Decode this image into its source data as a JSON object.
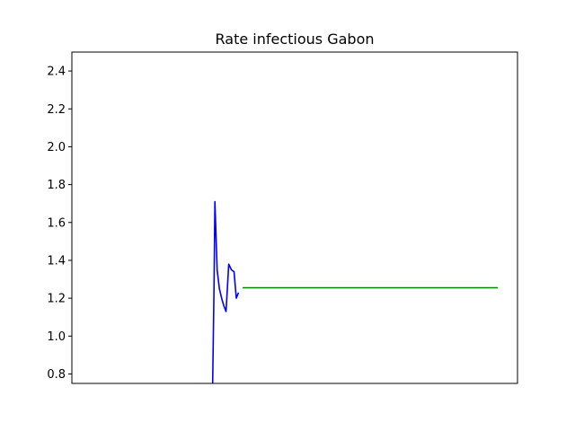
{
  "chart_data": {
    "type": "line",
    "title": "Rate infectious Gabon",
    "xlabel": "",
    "ylabel": "",
    "x_ticks_shown": false,
    "ylim": [
      0.75,
      2.5
    ],
    "xlim": [
      0,
      100
    ],
    "yticks": [
      "0.8",
      "1.0",
      "1.2",
      "1.4",
      "1.6",
      "1.8",
      "2.0",
      "2.2",
      "2.4"
    ],
    "grid": false,
    "legend": "none",
    "series": [
      {
        "color": "#0000ff",
        "points": [
          [
            31.6,
            0.75
          ],
          [
            31.9,
            1.25
          ],
          [
            32.1,
            1.71
          ],
          [
            32.6,
            1.35
          ],
          [
            33.1,
            1.25
          ],
          [
            33.6,
            1.2
          ],
          [
            34.1,
            1.16
          ],
          [
            34.6,
            1.13
          ],
          [
            35.2,
            1.38
          ],
          [
            35.8,
            1.35
          ],
          [
            36.4,
            1.34
          ],
          [
            36.9,
            1.2
          ],
          [
            37.4,
            1.23
          ]
        ]
      },
      {
        "color": "#008000",
        "points": [
          [
            38.3,
            1.255
          ],
          [
            95.6,
            1.255
          ]
        ]
      }
    ]
  }
}
